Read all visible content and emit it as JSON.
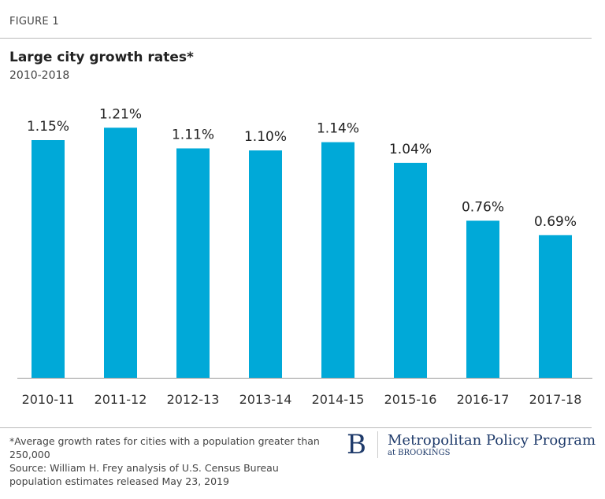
{
  "figure_label": "FIGURE 1",
  "chart_data": {
    "type": "bar",
    "title": "Large city growth rates*",
    "subtitle": "2010-2018",
    "categories": [
      "2010-11",
      "2011-12",
      "2012-13",
      "2013-14",
      "2014-15",
      "2015-16",
      "2016-17",
      "2017-18"
    ],
    "values": [
      1.15,
      1.21,
      1.11,
      1.1,
      1.14,
      1.04,
      0.76,
      0.69
    ],
    "data_labels": [
      "1.15%",
      "1.21%",
      "1.11%",
      "1.10%",
      "1.14%",
      "1.04%",
      "0.76%",
      "0.69%"
    ],
    "unit": "%",
    "ylim": [
      0,
      1.25
    ],
    "grid": false,
    "bar_color": "#00a9d8",
    "xlabel": "",
    "ylabel": ""
  },
  "notes": {
    "footnote": "*Average growth rates for cities with a population greater than 250,000",
    "source": "Source: William H. Frey analysis of U.S. Census Bureau population estimates released May 23, 2019"
  },
  "logo": {
    "letter": "B",
    "name": "Metropolitan Policy Program",
    "sub": "at BROOKINGS",
    "color": "#1f3b6b"
  }
}
